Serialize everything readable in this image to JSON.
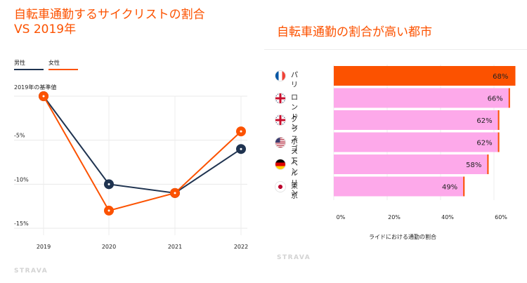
{
  "left": {
    "title_lines": [
      "自転車通勤するサイクリストの割合",
      "VS 2019年"
    ],
    "legend": [
      {
        "label": "男性",
        "color": "#1f3350"
      },
      {
        "label": "女性",
        "color": "#fc5200"
      }
    ],
    "brand": "STRAVA"
  },
  "right": {
    "title": "自転車通勤の割合が高い都市",
    "brand": "STRAVA",
    "flag_icons": [
      "france-flag-icon",
      "uk-flag-icon",
      "uk-flag-icon",
      "usa-flag-icon",
      "germany-flag-icon",
      "japan-flag-icon"
    ]
  },
  "chart_data": [
    {
      "type": "line",
      "x": [
        "2019",
        "2020",
        "2021",
        "2022"
      ],
      "ylim": [
        -15,
        0
      ],
      "yticks": [
        {
          "value": 0,
          "label": "2019年の基準値"
        },
        {
          "value": -5,
          "label": "-5%"
        },
        {
          "value": -10,
          "label": "-10%"
        },
        {
          "value": -15,
          "label": "-15%"
        }
      ],
      "grid": true,
      "legend_position": "top-left",
      "series": [
        {
          "name": "男性",
          "values": [
            0,
            -10,
            -11,
            -6
          ],
          "color": "#1f3350"
        },
        {
          "name": "女性",
          "values": [
            0,
            -13,
            -11,
            -4
          ],
          "color": "#fc5200"
        }
      ]
    },
    {
      "type": "bar",
      "orientation": "horizontal",
      "categories": [
        "パリ",
        "ロンドン",
        "グラスゴー",
        "ボストン",
        "ベルリン",
        "東京"
      ],
      "values": [
        68,
        66,
        62,
        62,
        58,
        49
      ],
      "value_labels": [
        "68%",
        "66%",
        "62%",
        "62%",
        "58%",
        "49%"
      ],
      "xlabel": "ライドにおける通勤の割合",
      "xlim": [
        0,
        70
      ],
      "xticks": [
        {
          "value": 0,
          "label": "0%"
        },
        {
          "value": 20,
          "label": "20%"
        },
        {
          "value": 40,
          "label": "40%"
        },
        {
          "value": 60,
          "label": "60%"
        }
      ],
      "colors": {
        "highlight": "#fc5200",
        "bar": "#fda9ea",
        "cap": "#fc5200"
      }
    }
  ]
}
